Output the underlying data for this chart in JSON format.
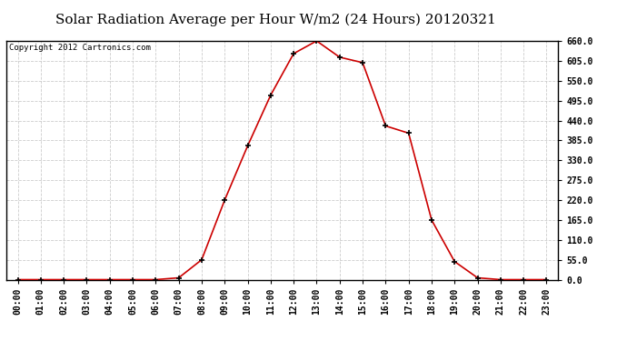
{
  "title": "Solar Radiation Average per Hour W/m2 (24 Hours) 20120321",
  "copyright_text": "Copyright 2012 Cartronics.com",
  "x_labels": [
    "00:00",
    "01:00",
    "02:00",
    "03:00",
    "04:00",
    "05:00",
    "06:00",
    "07:00",
    "08:00",
    "09:00",
    "10:00",
    "11:00",
    "12:00",
    "13:00",
    "14:00",
    "15:00",
    "16:00",
    "17:00",
    "18:00",
    "19:00",
    "20:00",
    "21:00",
    "22:00",
    "23:00"
  ],
  "y_values": [
    0.0,
    0.0,
    0.0,
    0.0,
    0.0,
    0.0,
    0.0,
    5.0,
    55.0,
    220.0,
    370.0,
    510.0,
    625.0,
    660.0,
    615.0,
    600.0,
    425.0,
    405.0,
    165.0,
    50.0,
    5.0,
    0.0,
    0.0,
    0.0
  ],
  "line_color": "#cc0000",
  "marker": "+",
  "marker_color": "#000000",
  "marker_size": 5,
  "marker_linewidth": 1.2,
  "line_width": 1.2,
  "background_color": "#ffffff",
  "plot_bg_color": "#ffffff",
  "grid_color": "#cccccc",
  "grid_style": "--",
  "ylim": [
    0.0,
    660.0
  ],
  "yticks": [
    0.0,
    55.0,
    110.0,
    165.0,
    220.0,
    275.0,
    330.0,
    385.0,
    440.0,
    495.0,
    550.0,
    605.0,
    660.0
  ],
  "title_fontsize": 11,
  "tick_fontsize": 7,
  "copyright_fontsize": 6.5,
  "border_color": "#000000"
}
